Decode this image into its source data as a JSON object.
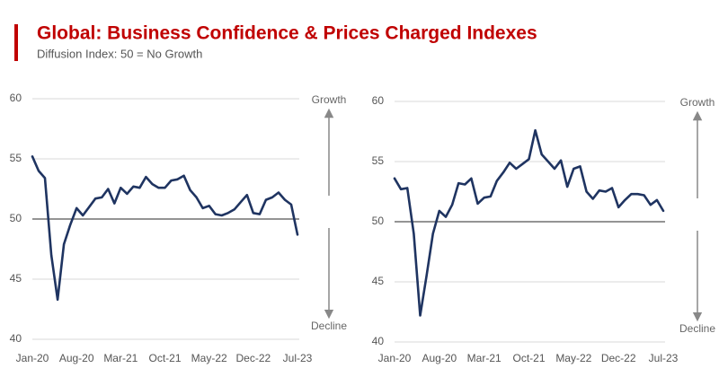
{
  "title": "Global: Business Confidence & Prices Charged Indexes",
  "subtitle": "Diffusion Index: 50 = No Growth",
  "chart_data": [
    {
      "type": "line",
      "categories": [
        "Jan-20",
        null,
        null,
        null,
        null,
        null,
        null,
        "Aug-20",
        null,
        null,
        null,
        null,
        null,
        null,
        "Mar-21",
        null,
        null,
        null,
        null,
        null,
        null,
        "Oct-21",
        null,
        null,
        null,
        null,
        null,
        null,
        "May-22",
        null,
        null,
        null,
        null,
        null,
        null,
        "Dec-22",
        null,
        null,
        null,
        null,
        null,
        null,
        "Jul-23"
      ],
      "values": [
        55.2,
        54.0,
        53.4,
        47.0,
        43.3,
        47.9,
        49.5,
        50.9,
        50.3,
        51.0,
        51.7,
        51.8,
        52.5,
        51.3,
        52.6,
        52.1,
        52.7,
        52.6,
        53.5,
        52.9,
        52.6,
        52.6,
        53.2,
        53.3,
        53.6,
        52.4,
        51.8,
        50.9,
        51.1,
        50.4,
        50.3,
        50.5,
        50.8,
        51.4,
        52.0,
        50.5,
        50.4,
        51.6,
        51.8,
        52.2,
        51.6,
        51.2,
        48.7
      ],
      "color": "#1f3461",
      "ylim": [
        40,
        60
      ],
      "yticks": [
        40,
        45,
        50,
        55,
        60
      ],
      "grid": true,
      "refline": 50,
      "annotations": {
        "top": "Growth",
        "bottom": "Decline"
      }
    },
    {
      "type": "line",
      "categories": [
        "Jan-20",
        null,
        null,
        null,
        null,
        null,
        null,
        "Aug-20",
        null,
        null,
        null,
        null,
        null,
        null,
        "Mar-21",
        null,
        null,
        null,
        null,
        null,
        null,
        "Oct-21",
        null,
        null,
        null,
        null,
        null,
        null,
        "May-22",
        null,
        null,
        null,
        null,
        null,
        null,
        "Dec-22",
        null,
        null,
        null,
        null,
        null,
        null,
        "Jul-23"
      ],
      "values": [
        53.6,
        52.7,
        52.8,
        49.0,
        42.2,
        45.5,
        49.0,
        50.9,
        50.4,
        51.4,
        53.2,
        53.1,
        53.6,
        51.5,
        52.0,
        52.1,
        53.4,
        54.1,
        54.9,
        54.4,
        54.8,
        55.2,
        57.6,
        55.6,
        55.0,
        54.4,
        55.1,
        52.9,
        54.4,
        54.6,
        52.5,
        51.9,
        52.6,
        52.5,
        52.8,
        51.2,
        51.8,
        52.3,
        52.3,
        52.2,
        51.4,
        51.8,
        50.9
      ],
      "color": "#1f3461",
      "ylim": [
        40,
        60
      ],
      "yticks": [
        40,
        45,
        50,
        55,
        60
      ],
      "grid": true,
      "refline": 50,
      "annotations": {
        "top": "Growth",
        "bottom": "Decline"
      }
    }
  ]
}
